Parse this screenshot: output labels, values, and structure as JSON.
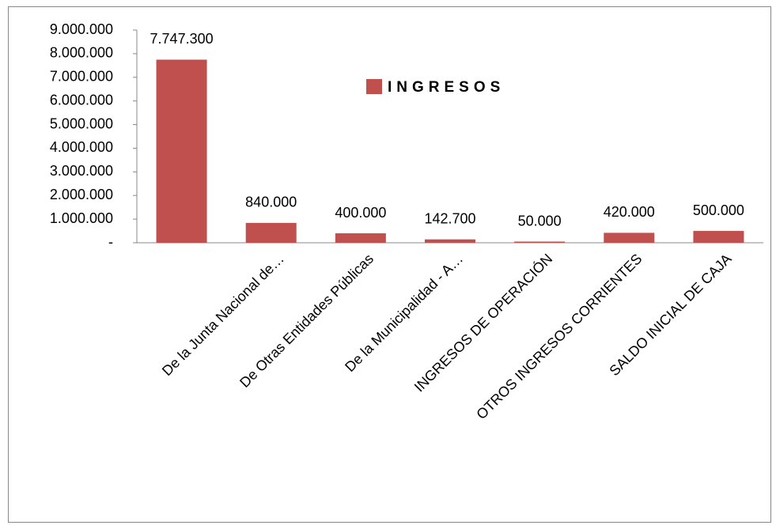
{
  "chart_data": {
    "type": "bar",
    "categories": [
      null,
      "De la Junta Nacional de…",
      "De Otras Entidades Públicas",
      "De la Municipalidad - A…",
      "INGRESOS DE OPERACIÓN",
      "OTROS INGRESOS CORRIENTES",
      "SALDO INICIAL DE CAJA"
    ],
    "series": [
      {
        "name": "INGRESOS",
        "color": "#c0504d",
        "values": [
          7747300,
          840000,
          400000,
          142700,
          50000,
          420000,
          500000
        ],
        "value_labels": [
          "7.747.300",
          "840.000",
          "400.000",
          "142.700",
          "50.000",
          "420.000",
          "500.000"
        ]
      }
    ],
    "ylim": [
      0,
      9000000
    ],
    "yticks": [
      {
        "value": 0,
        "label": "-"
      },
      {
        "value": 1000000,
        "label": "1.000.000"
      },
      {
        "value": 2000000,
        "label": "2.000.000"
      },
      {
        "value": 3000000,
        "label": "3.000.000"
      },
      {
        "value": 4000000,
        "label": "4.000.000"
      },
      {
        "value": 5000000,
        "label": "5.000.000"
      },
      {
        "value": 6000000,
        "label": "6.000.000"
      },
      {
        "value": 7000000,
        "label": "7.000.000"
      },
      {
        "value": 8000000,
        "label": "8.000.000"
      },
      {
        "value": 9000000,
        "label": "9.000.000"
      }
    ],
    "grid": false,
    "legend": "top-right"
  }
}
